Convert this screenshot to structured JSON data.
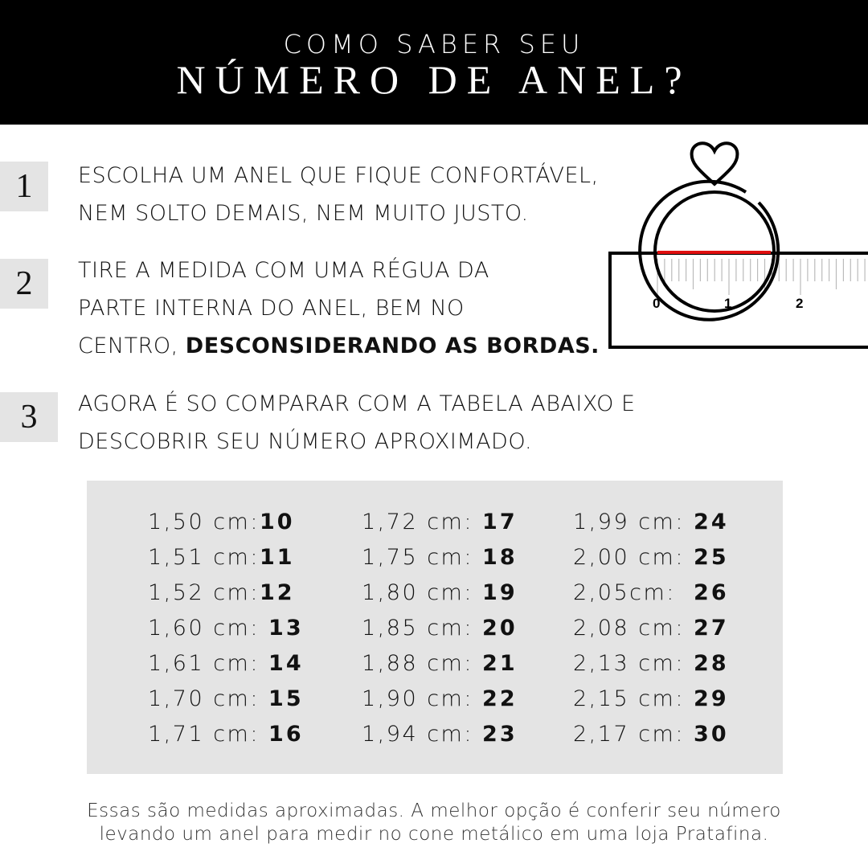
{
  "header": {
    "line1": "COMO SABER SEU",
    "line2": "NÚMERO DE ANEL?"
  },
  "steps": [
    {
      "number": "1",
      "lines": [
        "ESCOLHA UM ANEL QUE FIQUE CONFORTÁVEL,",
        "NEM SOLTO DEMAIS, NEM MUITO JUSTO."
      ]
    },
    {
      "number": "2",
      "lines": [
        "TIRE A MEDIDA COM UMA RÉGUA DA",
        "PARTE INTERNA DO ANEL, BEM NO"
      ],
      "line3_prefix": "CENTRO, ",
      "line3_bold": "DESCONSIDERANDO AS BORDAS."
    },
    {
      "number": "3",
      "lines": [
        "AGORA É SO COMPARAR COM A TABELA ABAIXO E",
        "DESCOBRIR SEU NÚMERO APROXIMADO."
      ]
    }
  ],
  "illustration": {
    "ruler_labels": [
      "0",
      "1",
      "2"
    ],
    "measure_color": "#e01010"
  },
  "size_table": [
    [
      {
        "m": "1,50 cm:",
        "n": "10"
      },
      {
        "m": "1,51 cm:",
        "n": "11"
      },
      {
        "m": "1,52 cm:",
        "n": "12"
      },
      {
        "m": "1,60 cm: ",
        "n": "13"
      },
      {
        "m": "1,61 cm: ",
        "n": "14"
      },
      {
        "m": "1,70 cm: ",
        "n": "15"
      },
      {
        "m": "1,71 cm: ",
        "n": "16"
      }
    ],
    [
      {
        "m": "1,72 cm: ",
        "n": "17"
      },
      {
        "m": "1,75 cm: ",
        "n": "18"
      },
      {
        "m": "1,80 cm: ",
        "n": "19"
      },
      {
        "m": "1,85 cm: ",
        "n": "20"
      },
      {
        "m": "1,88 cm: ",
        "n": "21"
      },
      {
        "m": "1,90 cm: ",
        "n": "22"
      },
      {
        "m": "1,94 cm: ",
        "n": "23"
      }
    ],
    [
      {
        "m": "1,99 cm: ",
        "n": "24"
      },
      {
        "m": "2,00 cm: ",
        "n": "25"
      },
      {
        "m": "2,05cm:  ",
        "n": "26"
      },
      {
        "m": "2,08 cm: ",
        "n": "27"
      },
      {
        "m": "2,13 cm: ",
        "n": "28"
      },
      {
        "m": "2,15 cm: ",
        "n": "29"
      },
      {
        "m": "2,17 cm: ",
        "n": "30"
      }
    ]
  ],
  "note": [
    "Essas são medidas aproximadas. A melhor opção é conferir seu número",
    "levando um anel para medir no cone metálico em uma loja Pratafina."
  ]
}
